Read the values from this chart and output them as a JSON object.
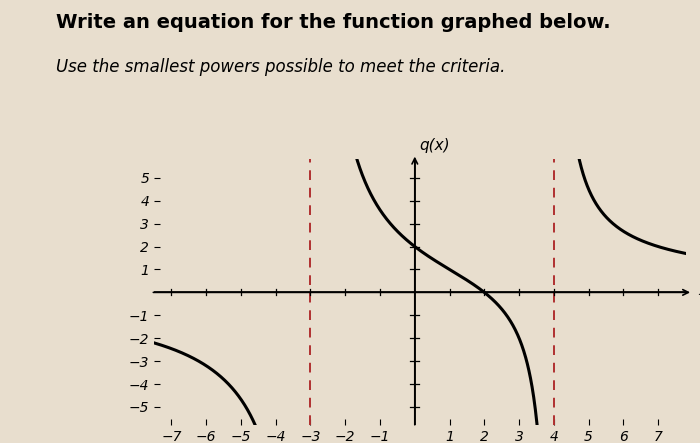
{
  "title": "Write an equation for the function graphed below.",
  "subtitle": "Use the smallest powers possible to meet the criteria.",
  "ylabel": "q(x)",
  "xlabel": "x",
  "xlim": [
    -7.5,
    7.8
  ],
  "ylim": [
    -5.8,
    5.8
  ],
  "xticks": [
    -7,
    -6,
    -5,
    -4,
    -3,
    -2,
    -1,
    1,
    2,
    3,
    4,
    5,
    6,
    7
  ],
  "yticks": [
    -5,
    -4,
    -3,
    -2,
    -1,
    1,
    2,
    3,
    4,
    5
  ],
  "asymptotes": [
    -3,
    4
  ],
  "background_color": "#e8dece",
  "curve_color": "#000000",
  "asymptote_color": "#b03030",
  "line_width": 2.2,
  "asymptote_linewidth": 1.4,
  "title_fontsize": 14,
  "subtitle_fontsize": 12,
  "axis_label_fontsize": 11,
  "tick_fontsize": 10,
  "numerator_zero": 2,
  "asymptote1": -3,
  "asymptote2": 4,
  "scale": 12
}
